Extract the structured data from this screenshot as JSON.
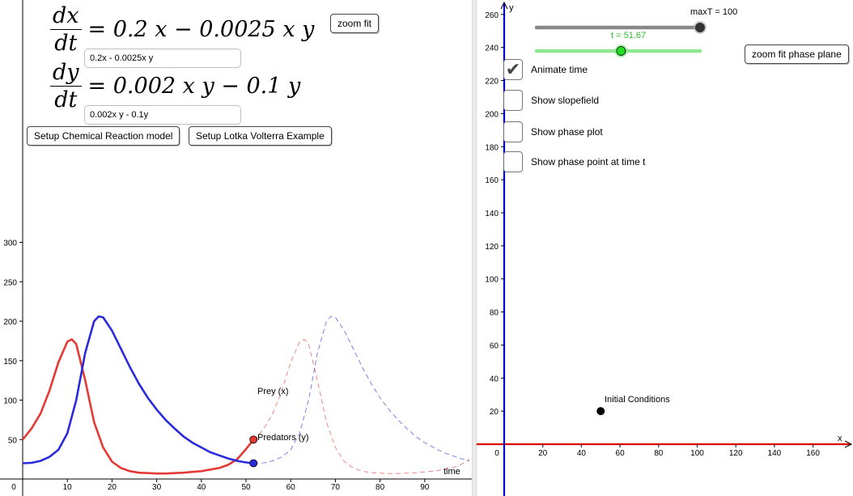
{
  "equations": {
    "dx_num": "dx",
    "dx_den": "dt",
    "dx_rhs": "= 0.2 x − 0.0025 x y",
    "dx_input": "0.2x - 0.0025x y",
    "dy_num": "dy",
    "dy_den": "dt",
    "dy_rhs": "= 0.002 x y − 0.1 y",
    "dy_input": "0.002x y - 0.1y"
  },
  "buttons": {
    "zoom_fit": "zoom fit",
    "setup_chemical": "Setup Chemical Reaction model",
    "setup_lotka": "Setup Lotka Volterra Example",
    "zoom_fit_phase": "zoom fit phase plane"
  },
  "sliders": {
    "maxT_label": "maxT = 100",
    "maxT_value": 100,
    "t_label": "t = 51.67",
    "t_value": 51.67
  },
  "checkboxes": [
    {
      "label": "Animate time",
      "checked": true
    },
    {
      "label": "Show slopefield",
      "checked": false
    },
    {
      "label": "Show phase plot",
      "checked": false
    },
    {
      "label": "Show phase point at time t",
      "checked": false
    }
  ],
  "time_plot": {
    "x_axis_label": "time",
    "x_ticks": [
      "0",
      "10",
      "20",
      "30",
      "40",
      "50",
      "60",
      "70",
      "80",
      "90"
    ],
    "y_ticks": [
      "50",
      "100",
      "150",
      "200",
      "250",
      "300"
    ],
    "prey_label": "Prey (x)",
    "predator_label": "Predators (y)",
    "prey_color": "#e53935",
    "predator_color": "#2b2bdc"
  },
  "phase_plot": {
    "x_axis_label": "x",
    "y_axis_label": "y",
    "x_ticks": [
      "0",
      "20",
      "40",
      "60",
      "80",
      "100",
      "120",
      "140",
      "160"
    ],
    "y_ticks": [
      "20",
      "40",
      "60",
      "80",
      "100",
      "120",
      "140",
      "160",
      "180",
      "200",
      "220",
      "240",
      "260"
    ],
    "initial_label": "Initial Conditions",
    "initial_point": {
      "x": 50,
      "y": 20
    },
    "x_axis_color": "#dd0000",
    "y_axis_color": "#0000cc"
  },
  "chart_data": [
    {
      "type": "line",
      "xlabel": "time",
      "ylabel": "",
      "xlim": [
        0,
        100
      ],
      "ylim": [
        0,
        300
      ],
      "series": [
        {
          "name": "Prey (x)",
          "x": [
            0,
            2,
            4,
            6,
            8,
            10,
            11,
            12,
            14,
            16,
            18,
            20,
            22,
            24,
            26,
            28,
            30,
            32,
            34,
            36,
            38,
            40,
            42,
            44,
            46,
            48,
            50,
            51.67
          ],
          "values": [
            50,
            64,
            83,
            112,
            148,
            174,
            177,
            171,
            125,
            72,
            40,
            22,
            14,
            10,
            8,
            7.5,
            7,
            7,
            7.5,
            8,
            9,
            10,
            12,
            14,
            18,
            25,
            38,
            50
          ]
        },
        {
          "name": "Predators (y)",
          "x": [
            0,
            2,
            4,
            6,
            8,
            10,
            12,
            14,
            16,
            17,
            18,
            20,
            22,
            24,
            26,
            28,
            30,
            32,
            34,
            36,
            38,
            40,
            42,
            44,
            46,
            48,
            50,
            51.67
          ],
          "values": [
            20,
            20.5,
            23,
            28,
            37,
            58,
            100,
            160,
            200,
            206,
            205,
            188,
            165,
            142,
            121,
            103,
            88,
            75,
            64,
            54,
            46,
            40,
            34,
            30,
            26,
            23,
            21,
            20
          ]
        }
      ]
    },
    {
      "type": "scatter",
      "xlabel": "x",
      "ylabel": "y",
      "xlim": [
        0,
        170
      ],
      "ylim": [
        0,
        270
      ],
      "series": [
        {
          "name": "Initial Conditions",
          "x": [
            50
          ],
          "values": [
            20
          ]
        }
      ]
    }
  ]
}
